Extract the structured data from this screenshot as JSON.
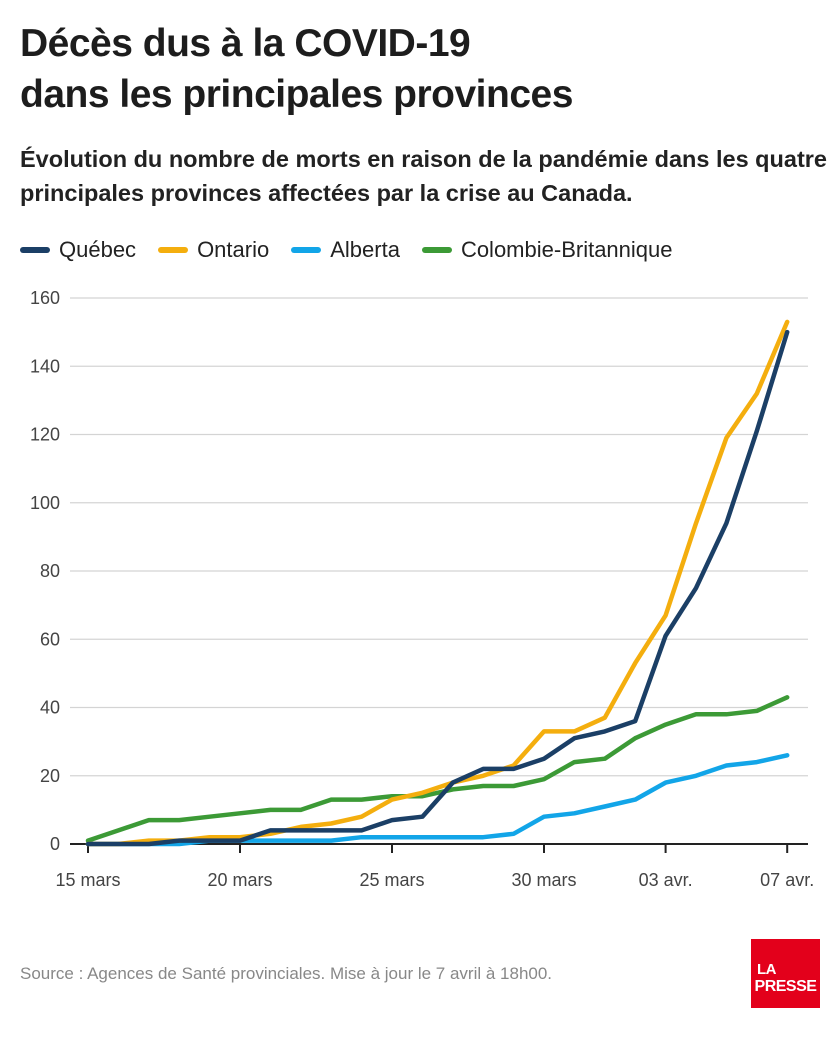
{
  "header": {
    "title_line1": "Décès dus à la COVID-19",
    "title_line2": "dans les principales provinces",
    "subtitle": "Évolution du nombre de morts en raison de la pandémie dans les quatre principales provinces affectées par la crise au Canada."
  },
  "footer": {
    "source": "Source : Agences de Santé provinciales. Mise à jour le 7 avril à 18h00.",
    "logo_line1": "LA",
    "logo_line2": "PRESSE"
  },
  "chart_data": {
    "type": "line",
    "title": "Décès dus à la COVID-19 dans les principales provinces",
    "xlabel": "",
    "ylabel": "",
    "ylim": [
      0,
      160
    ],
    "yticks": [
      0,
      20,
      40,
      60,
      80,
      100,
      120,
      140,
      160
    ],
    "grid": true,
    "legend_position": "top-left",
    "x": [
      "15 mars",
      "16 mars",
      "17 mars",
      "18 mars",
      "19 mars",
      "20 mars",
      "21 mars",
      "22 mars",
      "23 mars",
      "24 mars",
      "25 mars",
      "26 mars",
      "27 mars",
      "28 mars",
      "29 mars",
      "30 mars",
      "31 mars",
      "01 avr.",
      "02 avr.",
      "03 avr.",
      "04 avr.",
      "05 avr.",
      "06 avr.",
      "07 avr."
    ],
    "xtick_labels": [
      {
        "index": 0,
        "label": "15 mars"
      },
      {
        "index": 5,
        "label": "20 mars"
      },
      {
        "index": 10,
        "label": "25 mars"
      },
      {
        "index": 15,
        "label": "30 mars"
      },
      {
        "index": 19,
        "label": "03 avr."
      },
      {
        "index": 23,
        "label": "07 avr."
      }
    ],
    "series": [
      {
        "name": "Québec",
        "color": "#1b3f66",
        "values": [
          0,
          0,
          0,
          1,
          1,
          1,
          4,
          4,
          4,
          4,
          7,
          8,
          18,
          22,
          22,
          25,
          31,
          33,
          36,
          61,
          75,
          94,
          121,
          150
        ]
      },
      {
        "name": "Ontario",
        "color": "#f4ae0e",
        "values": [
          0,
          0,
          1,
          1,
          2,
          2,
          3,
          5,
          6,
          8,
          13,
          15,
          18,
          20,
          23,
          33,
          33,
          37,
          53,
          67,
          94,
          119,
          132,
          153
        ]
      },
      {
        "name": "Alberta",
        "color": "#12a5e8",
        "values": [
          0,
          0,
          0,
          0,
          1,
          1,
          1,
          1,
          1,
          2,
          2,
          2,
          2,
          2,
          3,
          8,
          9,
          11,
          13,
          18,
          20,
          23,
          24,
          26
        ]
      },
      {
        "name": "Colombie-Britannique",
        "color": "#3c9a36",
        "values": [
          1,
          4,
          7,
          7,
          8,
          9,
          10,
          10,
          13,
          13,
          14,
          14,
          16,
          17,
          17,
          19,
          24,
          25,
          31,
          35,
          38,
          38,
          39,
          43
        ]
      }
    ]
  }
}
